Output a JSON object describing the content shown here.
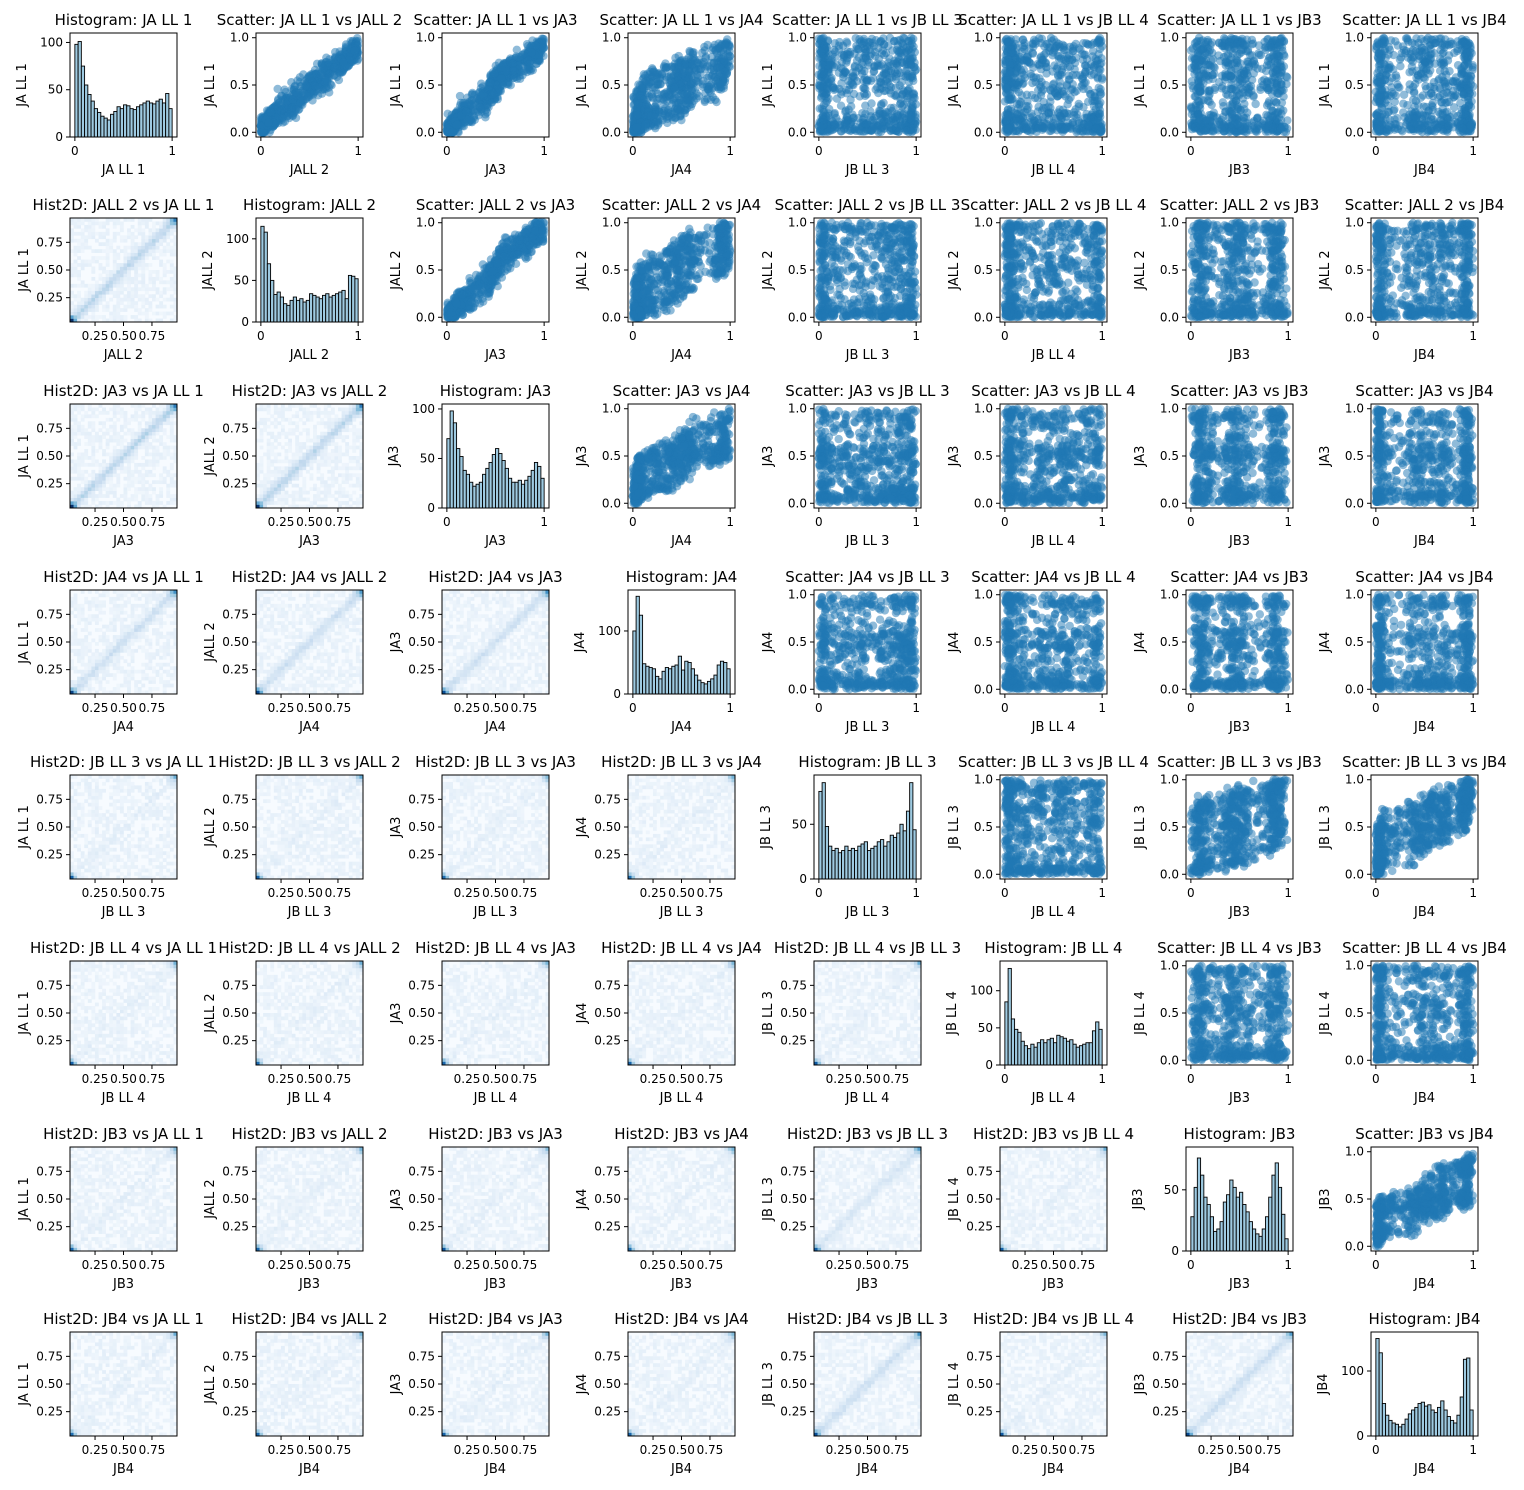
{
  "chart_data": {
    "type": "pairplot",
    "variables": [
      "JA LL 1",
      "JALL 2",
      "JA3",
      "JA4",
      "JB LL 3",
      "JB LL 4",
      "JB3",
      "JB4"
    ],
    "layout": {
      "rows": 8,
      "cols": 8
    },
    "diagonal": {
      "type": "histogram",
      "bins": 30,
      "bar_color": "#9ecae1",
      "edge_color": "#000000",
      "x_ticks": [
        "0",
        "1"
      ]
    },
    "upper": {
      "type": "scatter",
      "point_color": "#1f77b4",
      "alpha": 0.5,
      "xlim": [
        0,
        1
      ],
      "ylim": [
        0,
        1
      ],
      "ticks": [
        "0",
        "1"
      ],
      "y_ticks": [
        "0.0",
        "0.5",
        "1.0"
      ]
    },
    "lower": {
      "type": "hist2d",
      "colormap": "Blues",
      "ticks": [
        "0.25",
        "0.50",
        "0.75"
      ]
    },
    "title_templates": {
      "histogram": "Histogram: {v}",
      "scatter": "Scatter: {r} vs {c}",
      "hist2d": "Hist2D: {r} vs {c}"
    },
    "histograms": [
      {
        "variable": "JA LL 1",
        "y_ticks": [
          "0",
          "50",
          "100"
        ],
        "ymax": 110,
        "counts": [
          98,
          101,
          75,
          55,
          45,
          38,
          30,
          26,
          22,
          20,
          18,
          24,
          27,
          32,
          30,
          34,
          33,
          30,
          29,
          32,
          34,
          36,
          38,
          36,
          35,
          38,
          40,
          36,
          46,
          30
        ]
      },
      {
        "variable": "JALL 2",
        "y_ticks": [
          "0",
          "50",
          "100"
        ],
        "ymax": 125,
        "counts": [
          115,
          108,
          70,
          50,
          33,
          36,
          30,
          22,
          20,
          26,
          30,
          26,
          28,
          24,
          26,
          34,
          32,
          30,
          28,
          32,
          34,
          30,
          32,
          34,
          36,
          38,
          28,
          56,
          55,
          52
        ]
      },
      {
        "variable": "JA3",
        "y_ticks": [
          "0",
          "50",
          "100"
        ],
        "ymax": 105,
        "counts": [
          70,
          98,
          86,
          60,
          52,
          38,
          34,
          26,
          22,
          24,
          26,
          34,
          40,
          46,
          54,
          60,
          55,
          48,
          40,
          30,
          26,
          26,
          28,
          24,
          28,
          32,
          38,
          46,
          42,
          30
        ]
      },
      {
        "variable": "JA4",
        "y_ticks": [
          "0",
          "100"
        ],
        "ymax": 165,
        "counts": [
          100,
          155,
          125,
          48,
          44,
          42,
          40,
          28,
          24,
          36,
          42,
          40,
          44,
          46,
          60,
          38,
          52,
          50,
          40,
          30,
          22,
          18,
          16,
          20,
          24,
          30,
          46,
          52,
          50,
          40
        ]
      },
      {
        "variable": "JB LL 3",
        "y_ticks": [
          "0",
          "50"
        ],
        "ymax": 95,
        "counts": [
          80,
          88,
          48,
          30,
          26,
          28,
          24,
          26,
          30,
          26,
          28,
          26,
          30,
          32,
          34,
          26,
          28,
          30,
          34,
          36,
          30,
          34,
          40,
          38,
          42,
          50,
          44,
          62,
          88,
          45
        ]
      },
      {
        "variable": "JB LL 4",
        "y_ticks": [
          "0",
          "50",
          "100"
        ],
        "ymax": 140,
        "counts": [
          85,
          130,
          62,
          48,
          44,
          32,
          26,
          22,
          28,
          24,
          30,
          34,
          30,
          34,
          36,
          30,
          40,
          38,
          36,
          32,
          34,
          28,
          24,
          26,
          28,
          30,
          30,
          46,
          58,
          48
        ]
      },
      {
        "variable": "JB3",
        "y_ticks": [
          "0",
          "50"
        ],
        "ymax": 85,
        "counts": [
          28,
          52,
          76,
          62,
          44,
          38,
          28,
          16,
          18,
          24,
          40,
          46,
          58,
          52,
          44,
          48,
          38,
          32,
          24,
          18,
          14,
          12,
          18,
          28,
          44,
          62,
          72,
          52,
          30,
          10
        ]
      },
      {
        "variable": "JB4",
        "y_ticks": [
          "0",
          "100"
        ],
        "ymax": 160,
        "counts": [
          150,
          128,
          50,
          32,
          24,
          20,
          18,
          14,
          18,
          26,
          34,
          40,
          44,
          50,
          52,
          46,
          48,
          40,
          36,
          44,
          54,
          40,
          30,
          24,
          20,
          32,
          60,
          118,
          120,
          40
        ]
      }
    ]
  }
}
